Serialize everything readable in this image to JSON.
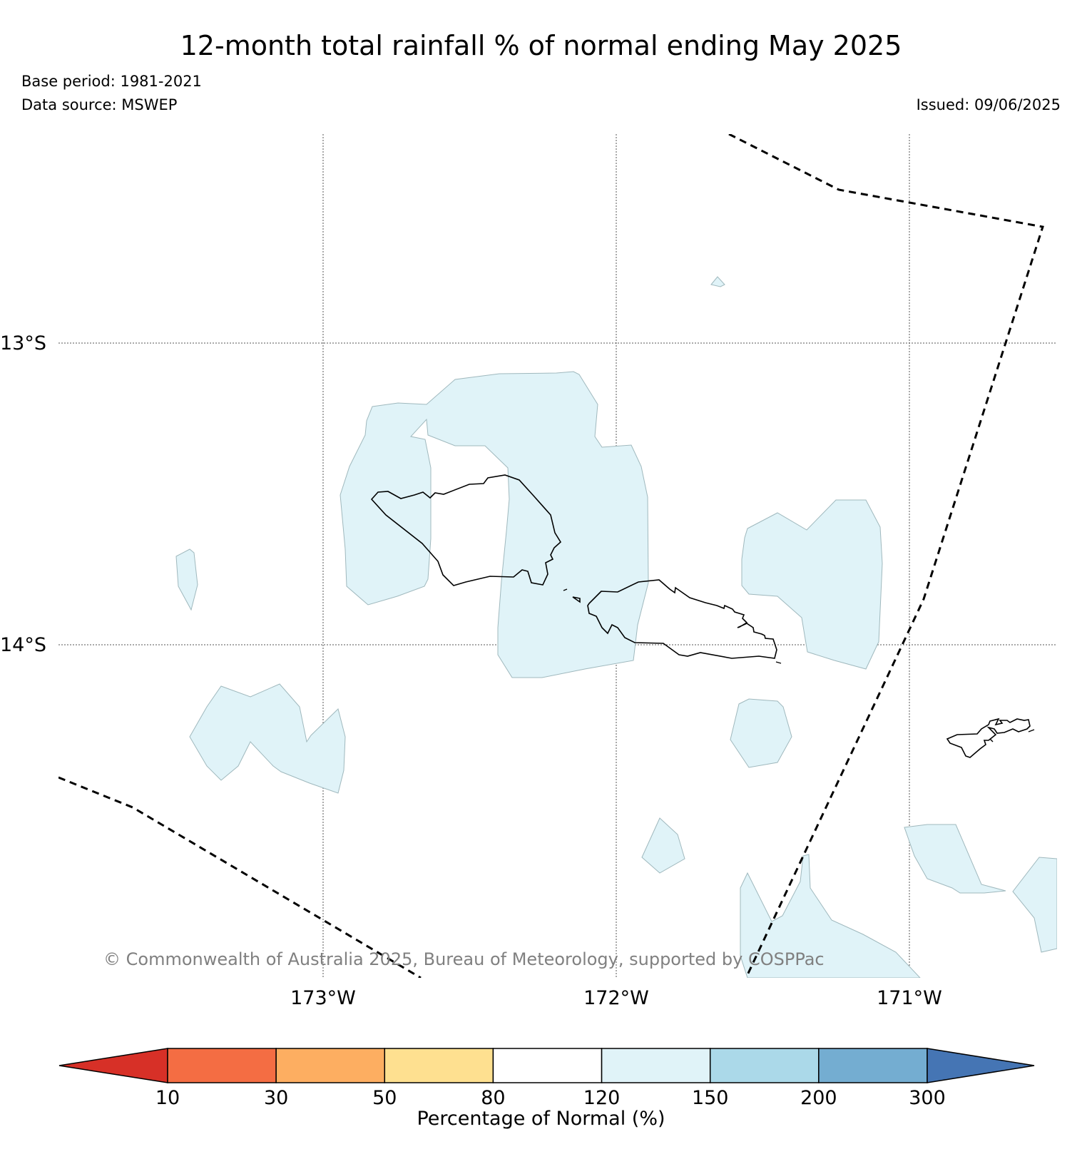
{
  "header": {
    "title": "12-month total rainfall % of normal ending May 2025",
    "base_period": "Base period: 1981-2021",
    "data_source": "Data source: MSWEP",
    "issued": "Issued: 09/06/2025"
  },
  "map": {
    "latitude_labels": [
      "13°S",
      "14°S"
    ],
    "longitude_labels": [
      "173°W",
      "172°W",
      "171°W"
    ],
    "copyright": "© Commonwealth of Australia 2025, Bureau of Meteorology, supported by COSPPac",
    "fill_color": "#e0f3f8"
  },
  "colorbar": {
    "label": "Percentage of Normal (%)",
    "ticks": [
      "10",
      "30",
      "50",
      "80",
      "120",
      "150",
      "200",
      "300"
    ],
    "colors": [
      "#d73027",
      "#f46d43",
      "#fdae61",
      "#fee090",
      "#ffffff",
      "#e0f3f8",
      "#abd9e9",
      "#74add1",
      "#4575b4"
    ]
  }
}
